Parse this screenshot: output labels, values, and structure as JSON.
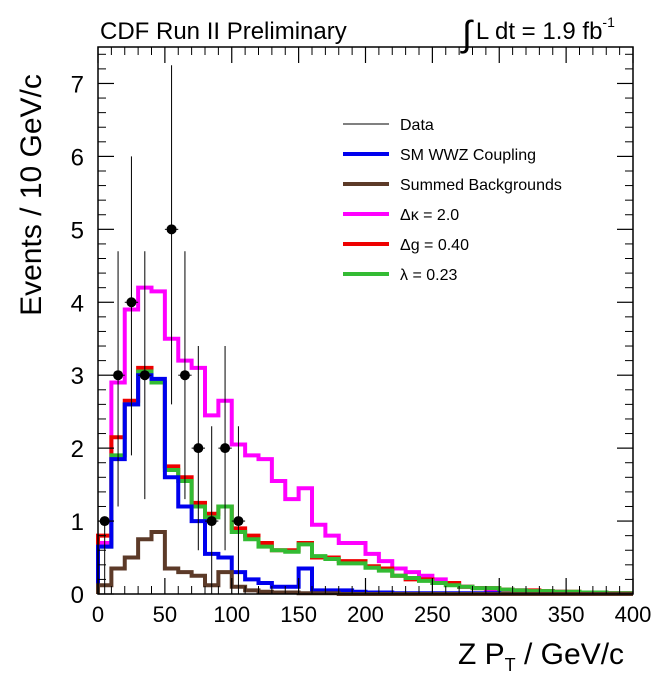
{
  "header": {
    "left": "CDF Run II Preliminary",
    "right_text": "L dt = 1.9 fb",
    "right_exponent": "-1",
    "integral_symbol": "∫"
  },
  "chart_data": {
    "type": "histogram",
    "title": "CDF Run II Preliminary",
    "annotation": "∫ L dt = 1.9 fb^-1",
    "xlabel": "Z P_T / GeV/c",
    "xlabel_main": "Z P",
    "xlabel_sub": "T",
    "xlabel_tail": " / GeV/c",
    "ylabel": "Events / 10 GeV/c",
    "xlim": [
      0,
      400
    ],
    "ylim": [
      0,
      7.5
    ],
    "x_ticks": [
      0,
      50,
      100,
      150,
      200,
      250,
      300,
      350,
      400
    ],
    "y_ticks": [
      0,
      1,
      2,
      3,
      4,
      5,
      6,
      7
    ],
    "bin_width": 10,
    "bin_edges_start": 0,
    "legend_position": "top-right",
    "legend": [
      {
        "label": "Data",
        "color": "#000000",
        "width": 1
      },
      {
        "label": "SM WWZ Coupling",
        "color": "#0000ee",
        "width": 4
      },
      {
        "label": "Summed Backgrounds",
        "color": "#5c3a28",
        "width": 4
      },
      {
        "label": "Δκ = 2.0",
        "color": "#ff00ff",
        "width": 4
      },
      {
        "label": "Δg = 0.40",
        "color": "#ee0000",
        "width": 4
      },
      {
        "label": "λ = 0.23",
        "color": "#33bb33",
        "width": 4
      }
    ],
    "series": [
      {
        "name": "Δκ = 2.0",
        "color": "#ff00ff",
        "values": [
          0.7,
          2.9,
          3.9,
          4.2,
          4.15,
          3.5,
          3.2,
          3.1,
          2.45,
          2.65,
          2.05,
          1.9,
          1.85,
          1.55,
          1.3,
          1.45,
          0.95,
          0.8,
          0.7,
          0.7,
          0.55,
          0.45,
          0.35,
          0.3,
          0.25,
          0.2,
          0.15,
          0.1,
          0.08,
          0.06,
          0.05,
          0.05,
          0.04,
          0.03,
          0.03,
          0.02,
          0.02,
          0.02,
          0.01,
          0.01
        ]
      },
      {
        "name": "Δg = 0.40",
        "color": "#ee0000",
        "values": [
          0.8,
          2.15,
          2.65,
          3.1,
          2.9,
          1.75,
          1.6,
          1.25,
          1.1,
          1.2,
          0.9,
          0.8,
          0.7,
          0.6,
          0.6,
          0.7,
          0.5,
          0.5,
          0.45,
          0.45,
          0.38,
          0.35,
          0.25,
          0.2,
          0.2,
          0.15,
          0.15,
          0.1,
          0.08,
          0.08,
          0.06,
          0.05,
          0.05,
          0.04,
          0.03,
          0.03,
          0.02,
          0.02,
          0.01,
          0.01
        ]
      },
      {
        "name": "λ = 0.23",
        "color": "#33bb33",
        "values": [
          0.65,
          1.9,
          2.6,
          3.05,
          2.9,
          1.7,
          1.55,
          1.2,
          1.05,
          1.2,
          0.85,
          0.75,
          0.65,
          0.6,
          0.58,
          0.68,
          0.52,
          0.48,
          0.42,
          0.42,
          0.36,
          0.32,
          0.25,
          0.22,
          0.18,
          0.15,
          0.12,
          0.1,
          0.08,
          0.08,
          0.06,
          0.05,
          0.04,
          0.04,
          0.03,
          0.03,
          0.02,
          0.02,
          0.01,
          0.01
        ]
      },
      {
        "name": "SM WWZ Coupling",
        "color": "#0000ee",
        "values": [
          0.65,
          1.85,
          2.6,
          3.0,
          2.95,
          1.6,
          1.2,
          1.0,
          0.55,
          0.5,
          0.3,
          0.2,
          0.15,
          0.1,
          0.1,
          0.35,
          0.05,
          0.05,
          0.05,
          0.03,
          0.02,
          0.02,
          0.01,
          0.01,
          0.01,
          0.01,
          0.01,
          0.01,
          0.01,
          0.01,
          0.0,
          0.0,
          0.0,
          0.0,
          0.0,
          0.0,
          0.0,
          0.0,
          0.0,
          0.0
        ]
      },
      {
        "name": "Summed Backgrounds",
        "color": "#5c3a28",
        "values": [
          0.12,
          0.35,
          0.5,
          0.75,
          0.85,
          0.35,
          0.3,
          0.25,
          0.12,
          0.3,
          0.1,
          0.05,
          0.03,
          0.02,
          0.02,
          0.01,
          0.01,
          0.01,
          0.0,
          0.0,
          0.0,
          0.0,
          0.0,
          0.0,
          0.0,
          0.0,
          0.0,
          0.0,
          0.0,
          0.0,
          0.0,
          0.0,
          0.0,
          0.0,
          0.0,
          0.0,
          0.0,
          0.0,
          0.0,
          0.0
        ]
      }
    ],
    "data_points": [
      {
        "x": 5,
        "y": 1,
        "ylow": 0,
        "yhigh": 1
      },
      {
        "x": 15,
        "y": 3,
        "ylow": 1.2,
        "yhigh": 4.7
      },
      {
        "x": 25,
        "y": 4,
        "ylow": 1.9,
        "yhigh": 6.0
      },
      {
        "x": 35,
        "y": 3,
        "ylow": 1.3,
        "yhigh": 4.7
      },
      {
        "x": 55,
        "y": 5,
        "ylow": 2.6,
        "yhigh": 7.25
      },
      {
        "x": 65,
        "y": 3,
        "ylow": 1.3,
        "yhigh": 4.7
      },
      {
        "x": 75,
        "y": 2,
        "ylow": 0.6,
        "yhigh": 3.4
      },
      {
        "x": 85,
        "y": 1,
        "ylow": 0,
        "yhigh": 2.3
      },
      {
        "x": 95,
        "y": 2,
        "ylow": 0.6,
        "yhigh": 3.4
      },
      {
        "x": 105,
        "y": 1,
        "ylow": 0,
        "yhigh": 2.3
      }
    ]
  }
}
